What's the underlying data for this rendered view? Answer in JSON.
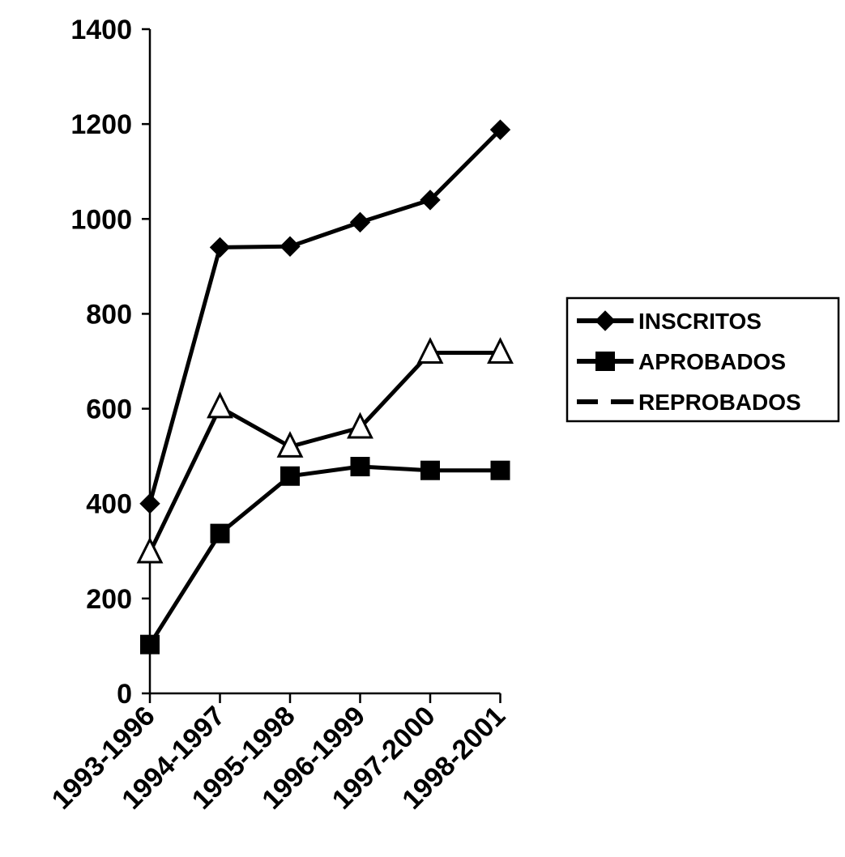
{
  "chart_data": {
    "type": "line",
    "title": "",
    "xlabel": "",
    "ylabel": "",
    "categories": [
      "1993-1996",
      "1994-1997",
      "1995-1998",
      "1996-1999",
      "1997-2000",
      "1998-2001"
    ],
    "ylim": [
      0,
      1400
    ],
    "yticks": [
      0,
      200,
      400,
      600,
      800,
      1000,
      1200,
      1400
    ],
    "grid": false,
    "legend_position": "right",
    "series": [
      {
        "name": "INSCRITOS",
        "marker": "diamond",
        "line_style": "solid",
        "color": "#000000",
        "values": [
          400,
          940,
          942,
          993,
          1040,
          1188
        ]
      },
      {
        "name": "APROBADOS",
        "marker": "square",
        "line_style": "solid",
        "color": "#000000",
        "values": [
          103,
          337,
          458,
          478,
          470,
          470
        ]
      },
      {
        "name": "REPROBADOS",
        "marker": "triangle",
        "line_style": "solid",
        "color": "#000000",
        "values": [
          297,
          603,
          520,
          560,
          718,
          718
        ]
      }
    ]
  }
}
